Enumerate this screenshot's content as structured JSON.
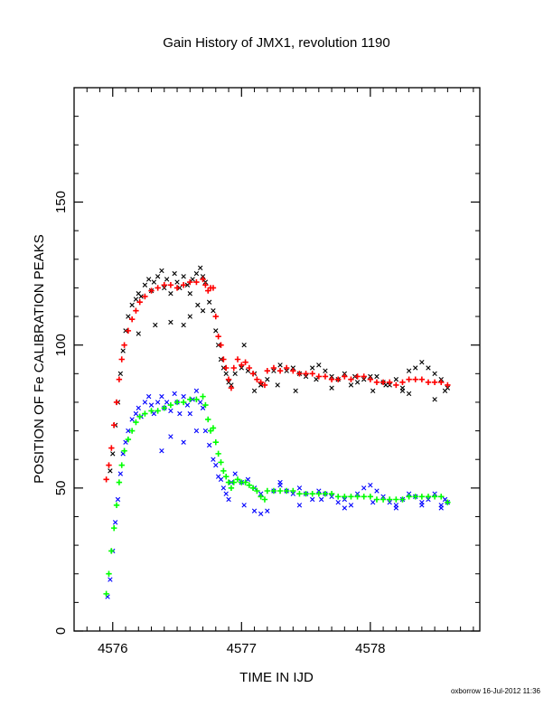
{
  "chart_data": {
    "type": "scatter",
    "title": "Gain History of JMX1, revolution 1190",
    "xlabel": "TIME IN IJD",
    "ylabel": "POSITION OF Fe CALIBRATION PEAKS",
    "xlim": [
      4575.7,
      4578.85
    ],
    "ylim": [
      0,
      190
    ],
    "x_ticks": [
      4576,
      4577,
      4578
    ],
    "y_ticks": [
      0,
      50,
      100,
      150
    ],
    "grid": false,
    "legend": "none",
    "series": [
      {
        "color": "#000000",
        "marker": "x",
        "x": [
          4575.98,
          4576.0,
          4576.02,
          4576.04,
          4576.06,
          4576.08,
          4576.1,
          4576.12,
          4576.15,
          4576.18,
          4576.2,
          4576.22,
          4576.25,
          4576.28,
          4576.3,
          4576.32,
          4576.35,
          4576.38,
          4576.4,
          4576.42,
          4576.45,
          4576.48,
          4576.5,
          4576.52,
          4576.55,
          4576.58,
          4576.6,
          4576.62,
          4576.65,
          4576.68,
          4576.7,
          4576.72,
          4576.75,
          4576.78,
          4576.8,
          4576.82,
          4576.84,
          4576.86,
          4576.88,
          4576.9,
          4576.92,
          4576.95,
          4577.0,
          4577.05,
          4577.1,
          4577.15,
          4577.2,
          4577.25,
          4577.3,
          4577.35,
          4577.4,
          4577.45,
          4577.5,
          4577.55,
          4577.6,
          4577.65,
          4577.7,
          4577.75,
          4577.8,
          4577.85,
          4577.9,
          4577.95,
          4578.0,
          4578.05,
          4578.1,
          4578.15,
          4578.2,
          4578.25,
          4578.3,
          4578.35,
          4578.4,
          4578.45,
          4578.5,
          4578.55,
          4578.58,
          4578.6,
          4576.33,
          4576.45,
          4576.6,
          4576.66,
          4576.7,
          4577.02,
          4577.1,
          4577.28,
          4577.42,
          4577.58,
          4577.7,
          4577.88,
          4578.02,
          4578.12,
          4578.3,
          4578.5,
          4576.2,
          4576.55,
          4577.15,
          4578.25
        ],
        "y": [
          56,
          62,
          72,
          80,
          90,
          98,
          105,
          110,
          114,
          116,
          118,
          117,
          121,
          123,
          119,
          122,
          124,
          126,
          120,
          123,
          118,
          125,
          122,
          120,
          124,
          121,
          118,
          123,
          125,
          127,
          124,
          122,
          115,
          112,
          105,
          100,
          95,
          92,
          90,
          87,
          86,
          90,
          92,
          91,
          90,
          86,
          88,
          91,
          93,
          91,
          92,
          90,
          89,
          92,
          93,
          91,
          89,
          88,
          90,
          86,
          87,
          88,
          89,
          89,
          87,
          86,
          88,
          85,
          91,
          92,
          94,
          92,
          90,
          88,
          84,
          85,
          107,
          108,
          110,
          114,
          112,
          100,
          84,
          86,
          84,
          88,
          85,
          89,
          84,
          86,
          83,
          81,
          104,
          107,
          86,
          84
        ]
      },
      {
        "color": "#ff0000",
        "marker": "+",
        "x": [
          4575.95,
          4575.97,
          4575.99,
          4576.01,
          4576.03,
          4576.05,
          4576.07,
          4576.09,
          4576.12,
          4576.15,
          4576.18,
          4576.21,
          4576.25,
          4576.3,
          4576.35,
          4576.4,
          4576.45,
          4576.5,
          4576.55,
          4576.6,
          4576.65,
          4576.7,
          4576.72,
          4576.74,
          4576.76,
          4576.78,
          4576.8,
          4576.82,
          4576.84,
          4576.86,
          4576.88,
          4576.9,
          4576.92,
          4576.94,
          4576.97,
          4577.0,
          4577.03,
          4577.06,
          4577.09,
          4577.12,
          4577.15,
          4577.18,
          4577.2,
          4577.25,
          4577.3,
          4577.35,
          4577.4,
          4577.45,
          4577.5,
          4577.55,
          4577.6,
          4577.65,
          4577.7,
          4577.75,
          4577.8,
          4577.85,
          4577.9,
          4577.95,
          4578.0,
          4578.05,
          4578.1,
          4578.15,
          4578.2,
          4578.25,
          4578.3,
          4578.35,
          4578.4,
          4578.45,
          4578.5,
          4578.55,
          4578.6
        ],
        "y": [
          53,
          58,
          64,
          72,
          80,
          88,
          95,
          100,
          105,
          109,
          112,
          115,
          117,
          119,
          120,
          121,
          121,
          120,
          121,
          122,
          122,
          123,
          121,
          119,
          120,
          120,
          110,
          103,
          100,
          95,
          92,
          88,
          85,
          92,
          95,
          93,
          94,
          92,
          90,
          88,
          87,
          86,
          91,
          92,
          91,
          92,
          91,
          90,
          90,
          90,
          89,
          89,
          88,
          88,
          89,
          88,
          89,
          89,
          88,
          87,
          87,
          87,
          86,
          87,
          88,
          88,
          88,
          87,
          87,
          87,
          86
        ]
      },
      {
        "color": "#0000ff",
        "marker": "x",
        "x": [
          4575.96,
          4575.98,
          4576.0,
          4576.02,
          4576.04,
          4576.06,
          4576.08,
          4576.1,
          4576.12,
          4576.15,
          4576.18,
          4576.2,
          4576.22,
          4576.25,
          4576.28,
          4576.3,
          4576.32,
          4576.35,
          4576.38,
          4576.4,
          4576.42,
          4576.45,
          4576.48,
          4576.5,
          4576.52,
          4576.55,
          4576.58,
          4576.6,
          4576.62,
          4576.65,
          4576.68,
          4576.7,
          4576.72,
          4576.75,
          4576.78,
          4576.8,
          4576.82,
          4576.84,
          4576.86,
          4576.88,
          4576.9,
          4576.92,
          4576.95,
          4577.0,
          4577.05,
          4577.1,
          4577.15,
          4577.2,
          4577.25,
          4577.3,
          4577.35,
          4577.4,
          4577.45,
          4577.5,
          4577.55,
          4577.6,
          4577.65,
          4577.7,
          4577.75,
          4577.8,
          4577.85,
          4577.9,
          4577.95,
          4578.0,
          4578.05,
          4578.1,
          4578.15,
          4578.2,
          4578.25,
          4578.3,
          4578.35,
          4578.4,
          4578.45,
          4578.5,
          4578.55,
          4578.58,
          4578.6,
          4576.45,
          4576.55,
          4576.65,
          4577.02,
          4577.1,
          4577.3,
          4577.45,
          4577.62,
          4577.8,
          4578.02,
          4578.2,
          4578.4,
          4578.55,
          4576.38,
          4577.15
        ],
        "y": [
          12,
          18,
          28,
          38,
          46,
          55,
          62,
          66,
          70,
          74,
          76,
          78,
          75,
          80,
          82,
          79,
          76,
          80,
          82,
          78,
          80,
          77,
          83,
          80,
          76,
          82,
          79,
          76,
          81,
          84,
          80,
          78,
          70,
          65,
          60,
          58,
          54,
          53,
          50,
          48,
          46,
          52,
          55,
          52,
          53,
          50,
          48,
          42,
          49,
          51,
          49,
          48,
          50,
          48,
          46,
          49,
          48,
          47,
          45,
          46,
          44,
          48,
          50,
          51,
          49,
          47,
          45,
          44,
          46,
          48,
          47,
          45,
          46,
          48,
          44,
          46,
          45,
          68,
          66,
          70,
          44,
          42,
          52,
          44,
          46,
          43,
          45,
          43,
          44,
          43,
          63,
          41
        ]
      },
      {
        "color": "#00ff00",
        "marker": "+",
        "x": [
          4575.95,
          4575.97,
          4575.99,
          4576.01,
          4576.03,
          4576.05,
          4576.07,
          4576.09,
          4576.12,
          4576.15,
          4576.18,
          4576.21,
          4576.25,
          4576.3,
          4576.35,
          4576.4,
          4576.45,
          4576.5,
          4576.55,
          4576.6,
          4576.65,
          4576.7,
          4576.72,
          4576.74,
          4576.76,
          4576.78,
          4576.8,
          4576.82,
          4576.84,
          4576.86,
          4576.88,
          4576.9,
          4576.92,
          4576.94,
          4576.97,
          4577.0,
          4577.03,
          4577.06,
          4577.09,
          4577.12,
          4577.15,
          4577.18,
          4577.2,
          4577.25,
          4577.3,
          4577.35,
          4577.4,
          4577.45,
          4577.5,
          4577.55,
          4577.6,
          4577.65,
          4577.7,
          4577.75,
          4577.8,
          4577.85,
          4577.9,
          4577.95,
          4578.0,
          4578.05,
          4578.1,
          4578.15,
          4578.2,
          4578.25,
          4578.3,
          4578.35,
          4578.4,
          4578.45,
          4578.5,
          4578.55,
          4578.6
        ],
        "y": [
          13,
          20,
          28,
          36,
          44,
          52,
          58,
          63,
          67,
          70,
          73,
          75,
          76,
          77,
          77,
          78,
          79,
          80,
          80,
          81,
          81,
          82,
          79,
          74,
          70,
          71,
          66,
          62,
          59,
          56,
          54,
          52,
          50,
          52,
          53,
          52,
          52,
          51,
          50,
          49,
          47,
          46,
          49,
          49,
          49,
          49,
          49,
          48,
          48,
          48,
          48,
          48,
          48,
          47,
          47,
          47,
          47,
          47,
          47,
          46,
          46,
          46,
          46,
          46,
          47,
          47,
          47,
          47,
          47,
          47,
          45
        ]
      }
    ]
  },
  "footer": {
    "credit": "oxborrow 16-Jul-2012 11:36"
  }
}
